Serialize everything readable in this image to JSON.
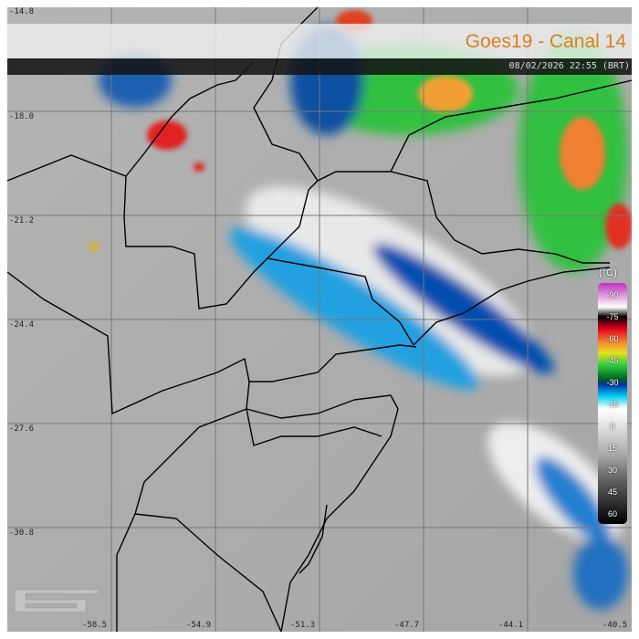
{
  "title": "Goes19 - Canal 14",
  "timestamp": "08/02/2026 22:55 (BRT)",
  "latitude_labels": [
    "-14.8",
    "-18.0",
    "-21.2",
    "-24.4",
    "-27.6",
    "-30.8"
  ],
  "longitude_labels": [
    "-58.5",
    "-54.9",
    "-51.3",
    "-47.7",
    "-44.1",
    "-40.5"
  ],
  "colorbar": {
    "unit": "(°C)",
    "ticks": [
      "-90",
      "-75",
      "-60",
      "-45",
      "-30",
      "-15",
      "0",
      "15",
      "30",
      "45",
      "60"
    ]
  },
  "colors": {
    "title": "#d9801e",
    "background": "#a8a8a8"
  }
}
